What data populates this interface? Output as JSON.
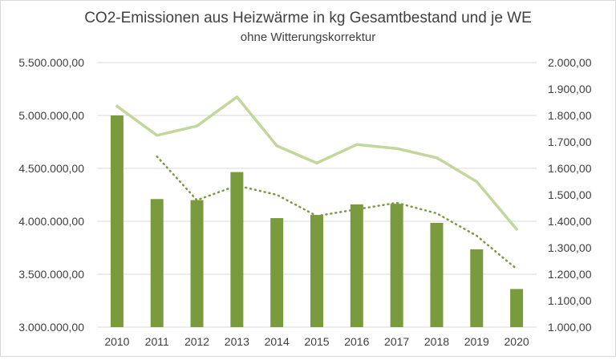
{
  "chart_data": {
    "type": "bar",
    "title": "CO2-Emissionen aus Heizwärme in kg Gesamtbestand und je WE",
    "subtitle": "ohne Witterungskorrektur",
    "categories": [
      "2010",
      "2011",
      "2012",
      "2013",
      "2014",
      "2015",
      "2016",
      "2017",
      "2018",
      "2019",
      "2020"
    ],
    "y_left": {
      "range": [
        3000000,
        5500000
      ],
      "ticks": [
        5500000,
        5000000,
        4500000,
        4000000,
        3500000,
        3000000
      ],
      "tick_labels": [
        "5.500.000,00",
        "5.000.000,00",
        "4.500.000,00",
        "4.000.000,00",
        "3.500.000,00",
        "3.000.000,00"
      ]
    },
    "y_right": {
      "range": [
        1000,
        2000
      ],
      "ticks": [
        2000,
        1900,
        1800,
        1700,
        1600,
        1500,
        1400,
        1300,
        1200,
        1100,
        1000
      ],
      "tick_labels": [
        "2.000,00",
        "1.900,00",
        "1.800,00",
        "1.700,00",
        "1.600,00",
        "1.500,00",
        "1.400,00",
        "1.300,00",
        "1.200,00",
        "1.100,00",
        "1.000,00"
      ]
    },
    "series": [
      {
        "type": "bar",
        "axis": "left",
        "color": "#7a9a3e",
        "values": [
          5000000,
          4210000,
          4200000,
          4465000,
          4030000,
          4060000,
          4160000,
          4165000,
          3985000,
          3735000,
          3360000
        ]
      },
      {
        "type": "line",
        "axis": "right",
        "color": "#c3d69b",
        "style": "solid",
        "values": [
          1835,
          1725,
          1760,
          1870,
          1685,
          1620,
          1690,
          1675,
          1640,
          1550,
          1370
        ]
      },
      {
        "type": "line",
        "axis": "right",
        "color": "#7a9a3e",
        "style": "dotted",
        "values": [
          null,
          1645,
          1480,
          1535,
          1500,
          1420,
          1445,
          1470,
          1430,
          1345,
          1220
        ]
      }
    ],
    "grid": true,
    "legend": "none"
  }
}
